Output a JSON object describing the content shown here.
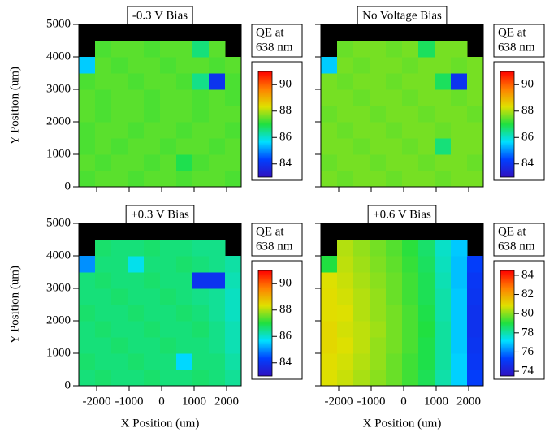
{
  "chart_data": [
    {
      "type": "heatmap",
      "title": "-0.3 V Bias",
      "ylabel": "Y Position (um)",
      "colorbar_label": [
        "QE at",
        "638 nm"
      ],
      "colorscale": [
        "#3010c0",
        "#0040ff",
        "#00e0ff",
        "#20e040",
        "#e0e000",
        "#ff8000",
        "#ff0000"
      ],
      "clim": [
        83,
        91
      ],
      "cticks": [
        84,
        86,
        88,
        90
      ],
      "xlim": [
        -2550,
        2450
      ],
      "xticks": [
        -2000,
        -1000,
        0,
        1000,
        2000
      ],
      "ylim": [
        0,
        5000
      ],
      "yticks": [
        0,
        1000,
        2000,
        3000,
        4000,
        5000
      ],
      "x": [
        -2300,
        -1800,
        -1300,
        -800,
        -300,
        200,
        700,
        1200,
        1700,
        2200
      ],
      "y": [
        250,
        750,
        1250,
        1750,
        2250,
        2750,
        3250,
        3750,
        4250,
        4750
      ],
      "z": [
        [
          87.3,
          87.4,
          87.4,
          87.3,
          87.4,
          87.4,
          87.3,
          87.4,
          87.4,
          87.3
        ],
        [
          87.4,
          87.3,
          87.4,
          87.4,
          87.3,
          87.4,
          86.9,
          87.3,
          87.4,
          87.4
        ],
        [
          87.3,
          87.4,
          87.3,
          87.4,
          87.4,
          87.3,
          87.4,
          87.4,
          87.3,
          87.4
        ],
        [
          87.3,
          87.4,
          87.4,
          87.3,
          87.4,
          87.4,
          87.3,
          87.4,
          87.4,
          87.3
        ],
        [
          87.4,
          87.3,
          87.4,
          87.4,
          87.3,
          87.4,
          87.4,
          87.3,
          87.4,
          87.4
        ],
        [
          87.4,
          87.3,
          87.4,
          87.4,
          87.3,
          87.4,
          87.4,
          87.3,
          87.4,
          87.3
        ],
        [
          87.3,
          87.4,
          87.4,
          87.3,
          87.4,
          87.4,
          87.3,
          86.5,
          84.0,
          87.3
        ],
        [
          85.5,
          87.4,
          87.3,
          87.4,
          87.4,
          87.3,
          87.4,
          87.4,
          87.3,
          87.4
        ],
        [
          null,
          87.3,
          87.4,
          87.4,
          87.3,
          87.4,
          87.4,
          86.6,
          87.4,
          null
        ],
        [
          null,
          null,
          null,
          null,
          null,
          null,
          null,
          null,
          null,
          null
        ]
      ]
    },
    {
      "type": "heatmap",
      "title": "No Voltage Bias",
      "colorbar_label": [
        "QE at",
        "638 nm"
      ],
      "colorscale": [
        "#3010c0",
        "#0040ff",
        "#00e0ff",
        "#20e040",
        "#e0e000",
        "#ff8000",
        "#ff0000"
      ],
      "clim": [
        83,
        91
      ],
      "cticks": [
        84,
        86,
        88,
        90
      ],
      "xlim": [
        -2550,
        2450
      ],
      "xticks": [
        -2000,
        -1000,
        0,
        1000,
        2000
      ],
      "ylim": [
        0,
        5000
      ],
      "yticks": [
        0,
        1000,
        2000,
        3000,
        4000,
        5000
      ],
      "x": [
        -2300,
        -1800,
        -1300,
        -800,
        -300,
        200,
        700,
        1200,
        1700,
        2200
      ],
      "y": [
        250,
        750,
        1250,
        1750,
        2250,
        2750,
        3250,
        3750,
        4250,
        4750
      ],
      "z": [
        [
          87.6,
          87.5,
          87.6,
          87.6,
          87.5,
          87.6,
          87.6,
          87.5,
          87.6,
          87.6
        ],
        [
          87.5,
          87.6,
          87.6,
          87.5,
          87.6,
          87.6,
          87.5,
          87.6,
          87.6,
          87.5
        ],
        [
          87.6,
          87.6,
          87.5,
          87.6,
          87.6,
          87.5,
          87.6,
          86.6,
          87.6,
          87.6
        ],
        [
          87.6,
          87.5,
          87.6,
          87.6,
          87.5,
          87.6,
          87.6,
          87.5,
          87.6,
          87.6
        ],
        [
          87.5,
          87.6,
          87.6,
          87.5,
          87.6,
          87.6,
          87.5,
          87.6,
          87.6,
          87.5
        ],
        [
          87.6,
          87.6,
          87.5,
          87.6,
          87.6,
          87.5,
          87.6,
          87.6,
          87.5,
          87.6
        ],
        [
          87.6,
          87.5,
          87.6,
          87.6,
          87.5,
          87.6,
          87.6,
          86.8,
          84.0,
          87.6
        ],
        [
          85.5,
          87.6,
          87.5,
          87.6,
          87.6,
          87.5,
          87.6,
          87.6,
          87.5,
          87.6
        ],
        [
          null,
          87.5,
          87.6,
          87.6,
          87.5,
          87.6,
          86.8,
          87.6,
          87.6,
          null
        ],
        [
          null,
          null,
          null,
          null,
          null,
          null,
          null,
          null,
          null,
          null
        ]
      ]
    },
    {
      "type": "heatmap",
      "title": "+0.3 V Bias",
      "xlabel": "X Position (um)",
      "ylabel": "Y Position (um)",
      "colorbar_label": [
        "QE at",
        "638 nm"
      ],
      "colorscale": [
        "#3010c0",
        "#0040ff",
        "#00e0ff",
        "#20e040",
        "#e0e000",
        "#ff8000",
        "#ff0000"
      ],
      "clim": [
        83,
        91
      ],
      "cticks": [
        84,
        86,
        88,
        90
      ],
      "xlim": [
        -2550,
        2450
      ],
      "xticks": [
        -2000,
        -1000,
        0,
        1000,
        2000
      ],
      "ylim": [
        0,
        5000
      ],
      "yticks": [
        0,
        1000,
        2000,
        3000,
        4000,
        5000
      ],
      "x": [
        -2300,
        -1800,
        -1300,
        -800,
        -300,
        200,
        700,
        1200,
        1700,
        2200
      ],
      "y": [
        250,
        750,
        1250,
        1750,
        2250,
        2750,
        3250,
        3750,
        4250,
        4750
      ],
      "z": [
        [
          86.6,
          86.7,
          86.6,
          86.6,
          86.7,
          86.6,
          86.6,
          86.7,
          86.6,
          86.4
        ],
        [
          86.7,
          86.6,
          86.6,
          86.7,
          86.6,
          86.6,
          85.6,
          86.6,
          86.6,
          86.3
        ],
        [
          86.6,
          86.6,
          86.7,
          86.6,
          86.6,
          86.7,
          86.6,
          86.6,
          86.5,
          86.2
        ],
        [
          86.6,
          86.7,
          86.6,
          86.6,
          86.7,
          86.6,
          86.6,
          86.7,
          86.5,
          86.2
        ],
        [
          86.7,
          86.6,
          86.6,
          86.7,
          86.6,
          86.6,
          86.7,
          86.6,
          86.4,
          86.1
        ],
        [
          86.6,
          86.6,
          86.7,
          86.6,
          86.6,
          86.7,
          86.6,
          86.5,
          86.4,
          86.1
        ],
        [
          86.6,
          86.7,
          86.6,
          86.6,
          86.7,
          86.6,
          86.6,
          84.0,
          84.0,
          86.2
        ],
        [
          85.0,
          86.6,
          86.6,
          85.8,
          86.6,
          86.6,
          86.7,
          86.6,
          86.5,
          86.3
        ],
        [
          null,
          86.7,
          86.6,
          86.6,
          86.7,
          86.6,
          86.6,
          86.5,
          86.5,
          null
        ],
        [
          null,
          null,
          null,
          null,
          null,
          null,
          null,
          null,
          null,
          null
        ]
      ]
    },
    {
      "type": "heatmap",
      "title": "+0.6 V Bias",
      "xlabel": "X Position (um)",
      "colorbar_label": [
        "QE at",
        "638 nm"
      ],
      "colorscale": [
        "#3010c0",
        "#0040ff",
        "#00e0ff",
        "#20e040",
        "#e0e000",
        "#ff8000",
        "#ff0000"
      ],
      "clim": [
        73.5,
        84.5
      ],
      "cticks": [
        74,
        76,
        78,
        80,
        82,
        84
      ],
      "xlim": [
        -2550,
        2450
      ],
      "xticks": [
        -2000,
        -1000,
        0,
        1000,
        2000
      ],
      "ylim": [
        0,
        5000
      ],
      "yticks": [
        0,
        1000,
        2000,
        3000,
        4000,
        5000
      ],
      "x": [
        -2300,
        -1800,
        -1300,
        -800,
        -300,
        200,
        700,
        1200,
        1700,
        2200
      ],
      "y": [
        250,
        750,
        1250,
        1750,
        2250,
        2750,
        3250,
        3750,
        4250,
        4750
      ],
      "z": [
        [
          80.8,
          80.6,
          80.3,
          80.0,
          79.7,
          79.3,
          78.8,
          78.0,
          77.0,
          75.2
        ],
        [
          80.9,
          80.7,
          80.4,
          80.1,
          79.7,
          79.3,
          78.9,
          78.1,
          77.0,
          75.0
        ],
        [
          81.0,
          80.8,
          80.5,
          80.1,
          79.8,
          79.4,
          78.9,
          78.1,
          76.9,
          74.9
        ],
        [
          81.0,
          80.7,
          80.5,
          80.2,
          79.8,
          79.4,
          79.0,
          78.1,
          76.9,
          74.8
        ],
        [
          80.9,
          80.8,
          80.4,
          80.1,
          79.8,
          79.4,
          78.9,
          78.0,
          76.9,
          74.8
        ],
        [
          80.9,
          80.7,
          80.4,
          80.1,
          79.7,
          79.3,
          78.8,
          78.0,
          76.9,
          74.9
        ],
        [
          80.8,
          80.6,
          80.3,
          80.0,
          79.7,
          79.3,
          78.8,
          77.9,
          76.8,
          75.0
        ],
        [
          79.0,
          80.5,
          80.2,
          79.9,
          79.6,
          79.2,
          78.7,
          77.8,
          76.8,
          75.2
        ],
        [
          null,
          80.4,
          80.1,
          79.8,
          79.5,
          79.1,
          78.6,
          77.7,
          76.9,
          null
        ],
        [
          null,
          null,
          null,
          null,
          null,
          null,
          null,
          null,
          null,
          null
        ]
      ]
    }
  ]
}
